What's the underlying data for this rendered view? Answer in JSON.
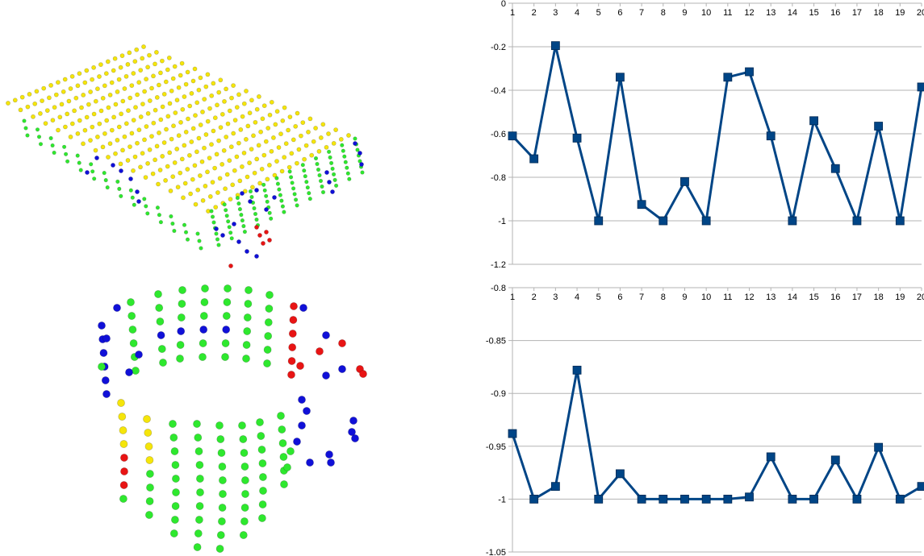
{
  "colors": {
    "yellow": "#f5e50a",
    "green": "#2ee82e",
    "blue": "#1010d8",
    "red": "#e81414",
    "series": "#004586",
    "grid": "#b3b3b3",
    "axis": "#b3b3b3"
  },
  "scatter_figure": {
    "icon": "point-cloud-segmentation-illustration",
    "class_colors": [
      "yellow",
      "green",
      "blue",
      "red"
    ]
  },
  "chart_data": [
    {
      "type": "line",
      "title": "",
      "xlabel": "",
      "ylabel": "",
      "categories": [
        "1",
        "2",
        "3",
        "4",
        "5",
        "6",
        "7",
        "8",
        "9",
        "10",
        "11",
        "12",
        "13",
        "14",
        "15",
        "16",
        "17",
        "18",
        "19",
        "20"
      ],
      "series": [
        {
          "values": [
            -0.61,
            -0.715,
            -0.195,
            -0.62,
            -1,
            -0.34,
            -0.925,
            -1,
            -0.82,
            -1,
            -0.34,
            -0.315,
            -0.61,
            -1,
            -0.54,
            -0.76,
            -1,
            -0.565,
            -1,
            -0.385
          ]
        }
      ],
      "ylim": [
        -1.2,
        0
      ],
      "yticks": [
        "0",
        "-0.2",
        "-0.4",
        "-0.6",
        "-0.8",
        "-1",
        "-1.2"
      ],
      "ytick_values": [
        0,
        -0.2,
        -0.4,
        -0.6,
        -0.8,
        -1,
        -1.2
      ],
      "x_tick_position": "top",
      "marker": "square",
      "grid": true
    },
    {
      "type": "line",
      "title": "",
      "xlabel": "",
      "ylabel": "",
      "categories": [
        "1",
        "2",
        "3",
        "4",
        "5",
        "6",
        "7",
        "8",
        "9",
        "10",
        "11",
        "12",
        "13",
        "14",
        "15",
        "16",
        "17",
        "18",
        "19",
        "20"
      ],
      "series": [
        {
          "values": [
            -0.938,
            -1,
            -0.988,
            -0.878,
            -1,
            -0.976,
            -1,
            -1,
            -1,
            -1,
            -1,
            -0.998,
            -0.96,
            -1,
            -1,
            -0.963,
            -1,
            -0.951,
            -1,
            -0.988
          ]
        }
      ],
      "ylim": [
        -1.05,
        -0.8
      ],
      "yticks": [
        "-0.8",
        "-0.85",
        "-0.9",
        "-0.95",
        "-1",
        "-1.05"
      ],
      "ytick_values": [
        -0.8,
        -0.85,
        -0.9,
        -0.95,
        -1,
        -1.05
      ],
      "x_tick_position": "top",
      "marker": "square",
      "grid": true
    }
  ]
}
